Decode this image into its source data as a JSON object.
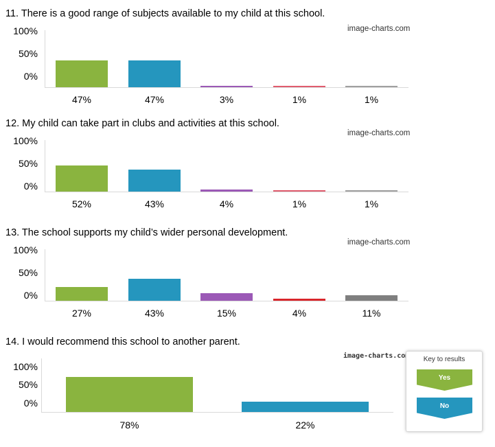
{
  "chart_data": [
    {
      "type": "bar",
      "title": "11. There is a good range of subjects available to my child at this school.",
      "watermark": "image-charts.com",
      "yticks": [
        "100%",
        "50%",
        "0%"
      ],
      "ylim": [
        0,
        100
      ],
      "values": [
        47,
        47,
        3,
        1,
        1
      ],
      "labels": [
        "47%",
        "47%",
        "3%",
        "1%",
        "1%"
      ],
      "colors": [
        "#8ab43f",
        "#2596be",
        "#9b59b6",
        "#e05c6e",
        "#a0a0a0"
      ]
    },
    {
      "type": "bar",
      "title": "12. My child can take part in clubs and activities at this school.",
      "watermark": "image-charts.com",
      "yticks": [
        "100%",
        "50%",
        "0%"
      ],
      "ylim": [
        0,
        100
      ],
      "values": [
        52,
        43,
        4,
        1,
        1
      ],
      "labels": [
        "52%",
        "43%",
        "4%",
        "1%",
        "1%"
      ],
      "colors": [
        "#8ab43f",
        "#2596be",
        "#9b59b6",
        "#e05c6e",
        "#a0a0a0"
      ]
    },
    {
      "type": "bar",
      "title": "13. The school supports my child’s wider personal development.",
      "watermark": "image-charts.com",
      "yticks": [
        "100%",
        "50%",
        "0%"
      ],
      "ylim": [
        0,
        100
      ],
      "values": [
        27,
        43,
        15,
        4,
        11
      ],
      "labels": [
        "27%",
        "43%",
        "15%",
        "4%",
        "11%"
      ],
      "colors": [
        "#8ab43f",
        "#2596be",
        "#9b59b6",
        "#d9262c",
        "#7f7f7f"
      ]
    },
    {
      "type": "bar",
      "title": "14. I would recommend this school to another parent.",
      "watermark": "image-charts.com",
      "yticks": [
        "100%",
        "50%",
        "0%"
      ],
      "ylim": [
        0,
        100
      ],
      "values": [
        78,
        22
      ],
      "labels": [
        "78%",
        "22%"
      ],
      "colors": [
        "#8ab43f",
        "#2596be"
      ]
    }
  ],
  "legend": {
    "title": "Key to results",
    "items": [
      {
        "label": "Yes",
        "color": "#8ab43f"
      },
      {
        "label": "No",
        "color": "#2596be"
      }
    ]
  }
}
